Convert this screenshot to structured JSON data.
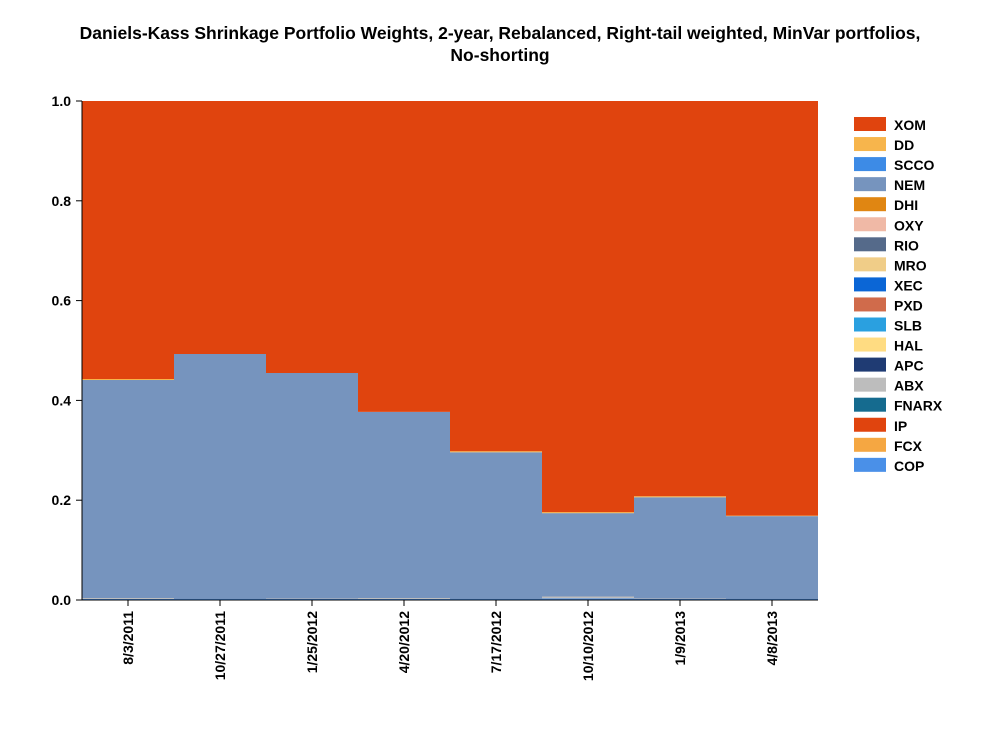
{
  "chart_data": {
    "type": "area",
    "title_line1": "Daniels-Kass Shrinkage Portfolio Weights, 2-year, Rebalanced, Right-tail weighted, MinVar portfolios,",
    "title_line2": "No-shorting",
    "xlabel": "",
    "ylabel": "",
    "ylim": [
      0,
      1
    ],
    "y_ticks": [
      "0.0",
      "0.2",
      "0.4",
      "0.6",
      "0.8",
      "1.0"
    ],
    "categories": [
      "8/3/2011",
      "10/27/2011",
      "1/25/2012",
      "4/20/2012",
      "7/17/2012",
      "10/10/2012",
      "1/9/2013",
      "4/8/2013"
    ],
    "grid": false,
    "legend_position": "right",
    "stacking": "stacked-step",
    "series": [
      {
        "name": "COP",
        "color": "#4a90e8",
        "values": [
          0.002,
          0.002,
          0.002,
          0.002,
          0.002,
          0.003,
          0.002,
          0.002
        ]
      },
      {
        "name": "FCX",
        "color": "#f5a742",
        "values": [
          0,
          0,
          0,
          0,
          0,
          0,
          0,
          0
        ]
      },
      {
        "name": "IP",
        "color": "#e0440e",
        "values": [
          0,
          0,
          0,
          0,
          0,
          0,
          0,
          0
        ]
      },
      {
        "name": "FNARX",
        "color": "#156b8f",
        "values": [
          0,
          0,
          0,
          0,
          0,
          0,
          0,
          0
        ]
      },
      {
        "name": "ABX",
        "color": "#bdbdbd",
        "values": [
          0.002,
          0,
          0.001,
          0.002,
          0,
          0.004,
          0.001,
          0
        ]
      },
      {
        "name": "APC",
        "color": "#1f3b73",
        "values": [
          0,
          0,
          0,
          0,
          0,
          0,
          0,
          0
        ]
      },
      {
        "name": "HAL",
        "color": "#ffdc82",
        "values": [
          0,
          0,
          0,
          0,
          0,
          0,
          0,
          0
        ]
      },
      {
        "name": "SLB",
        "color": "#2aa0e0",
        "values": [
          0,
          0,
          0,
          0,
          0,
          0,
          0,
          0
        ]
      },
      {
        "name": "PXD",
        "color": "#d06b4b",
        "values": [
          0,
          0,
          0,
          0,
          0,
          0,
          0,
          0
        ]
      },
      {
        "name": "XEC",
        "color": "#0b66d6",
        "values": [
          0,
          0,
          0,
          0,
          0,
          0,
          0,
          0
        ]
      },
      {
        "name": "MRO",
        "color": "#f0cd88",
        "values": [
          0,
          0,
          0,
          0,
          0,
          0,
          0,
          0
        ]
      },
      {
        "name": "RIO",
        "color": "#556a8a",
        "values": [
          0,
          0,
          0,
          0,
          0,
          0,
          0,
          0
        ]
      },
      {
        "name": "OXY",
        "color": "#f0b9a6",
        "values": [
          0,
          0,
          0,
          0,
          0,
          0,
          0,
          0
        ]
      },
      {
        "name": "DHI",
        "color": "#e08612",
        "values": [
          0,
          0,
          0,
          0,
          0,
          0,
          0,
          0
        ]
      },
      {
        "name": "NEM",
        "color": "#7694be",
        "values": [
          0.437,
          0.491,
          0.452,
          0.373,
          0.294,
          0.167,
          0.203,
          0.166
        ]
      },
      {
        "name": "SCCO",
        "color": "#3d8be6",
        "values": [
          0,
          0,
          0,
          0,
          0,
          0,
          0,
          0
        ]
      },
      {
        "name": "DD",
        "color": "#f7b54c",
        "values": [
          0.002,
          0,
          0,
          0,
          0.002,
          0.002,
          0.002,
          0.001
        ]
      },
      {
        "name": "XOM",
        "color": "#e0440e",
        "values": [
          0.557,
          0.507,
          0.545,
          0.623,
          0.702,
          0.824,
          0.792,
          0.831
        ]
      }
    ],
    "legend_order": [
      "XOM",
      "DD",
      "SCCO",
      "NEM",
      "DHI",
      "OXY",
      "RIO",
      "MRO",
      "XEC",
      "PXD",
      "SLB",
      "HAL",
      "APC",
      "ABX",
      "FNARX",
      "IP",
      "FCX",
      "COP"
    ]
  }
}
